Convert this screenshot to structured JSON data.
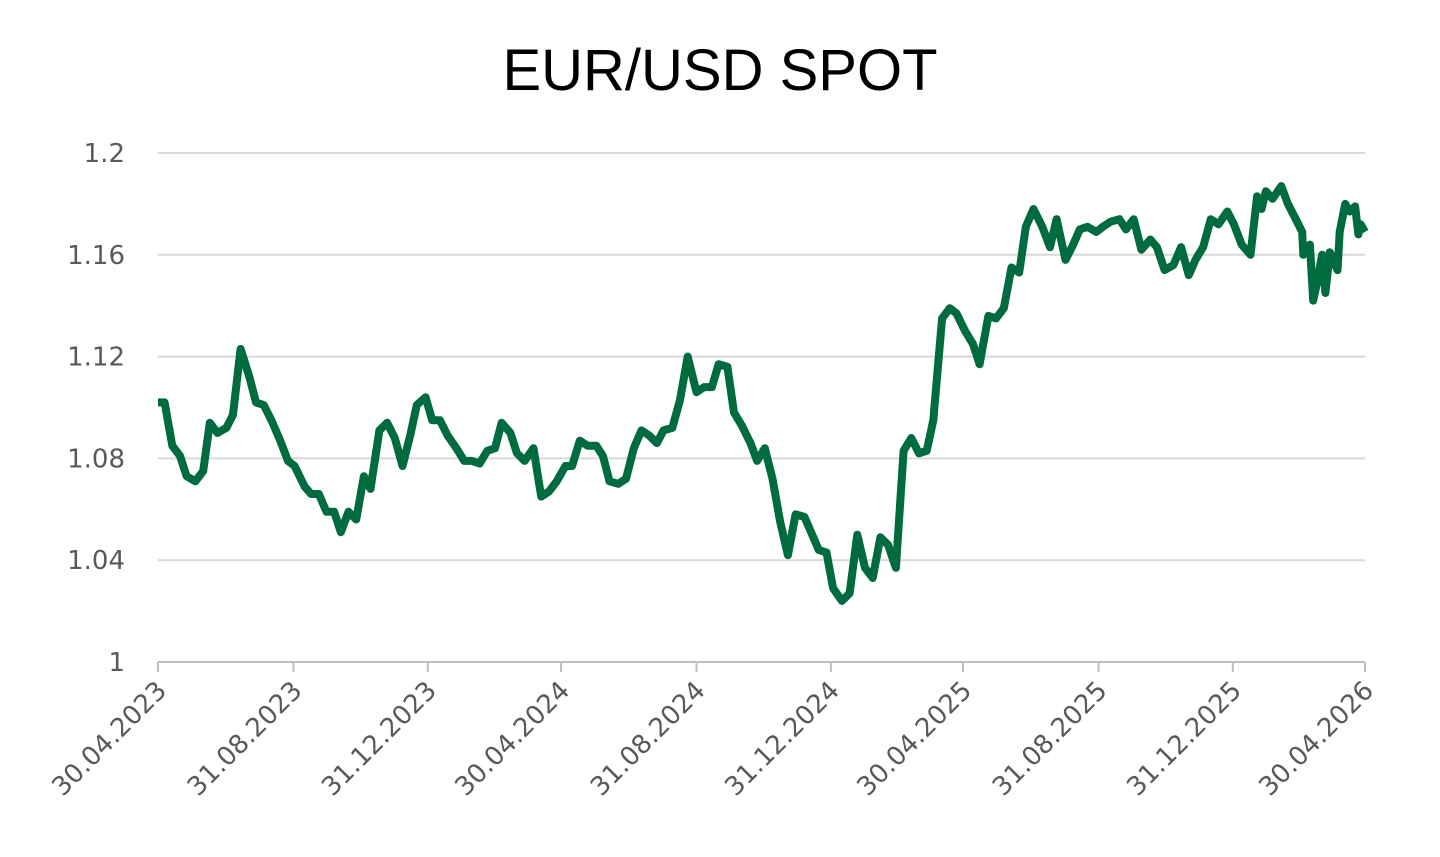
{
  "chart_data": {
    "type": "line",
    "title": "EUR/USD SPOT",
    "x": [
      "30.04.2023",
      "06.05.2023",
      "13.05.2023",
      "20.05.2023",
      "26.05.2023",
      "03.06.2023",
      "10.06.2023",
      "16.06.2023",
      "23.06.2023",
      "01.07.2023",
      "07.07.2023",
      "14.07.2023",
      "22.07.2023",
      "28.07.2023",
      "04.08.2023",
      "11.08.2023",
      "19.08.2023",
      "26.08.2023",
      "01.09.2023",
      "10.09.2023",
      "16.09.2023",
      "23.09.2023",
      "30.09.2023",
      "07.10.2023",
      "13.10.2023",
      "20.10.2023",
      "27.10.2023",
      "03.11.2023",
      "09.11.2023",
      "17.11.2023",
      "24.11.2023",
      "01.12.2023",
      "08.12.2023",
      "15.12.2023",
      "21.12.2023",
      "29.12.2023",
      "04.01.2024",
      "11.01.2024",
      "18.01.2024",
      "26.01.2024",
      "02.02.2024",
      "09.02.2024",
      "16.02.2024",
      "23.02.2024",
      "01.03.2024",
      "07.03.2024",
      "15.03.2024",
      "21.03.2024",
      "28.03.2024",
      "05.04.2024",
      "12.04.2024",
      "19.04.2024",
      "26.04.2024",
      "04.05.2024",
      "10.05.2024",
      "17.05.2024",
      "24.05.2024",
      "01.06.2024",
      "07.06.2024",
      "13.06.2024",
      "21.06.2024",
      "28.06.2024",
      "05.07.2024",
      "12.07.2024",
      "19.07.2024",
      "26.07.2024",
      "01.08.2024",
      "09.08.2024",
      "16.08.2024",
      "23.08.2024",
      "31.08.2024",
      "07.09.2024",
      "14.09.2024",
      "20.09.2024",
      "28.09.2024",
      "04.10.2024",
      "11.10.2024",
      "19.10.2024",
      "25.10.2024",
      "01.11.2024",
      "08.11.2024",
      "15.11.2024",
      "22.11.2024",
      "29.11.2024",
      "07.12.2024",
      "13.12.2024",
      "20.12.2024",
      "27.12.2024",
      "02.01.2025",
      "10.01.2025",
      "17.01.2025",
      "24.01.2025",
      "31.01.2025",
      "07.02.2025",
      "14.02.2025",
      "21.02.2025",
      "28.02.2025",
      "07.03.2025",
      "14.03.2025",
      "21.03.2025",
      "28.03.2025",
      "03.04.2025",
      "11.04.2025",
      "18.04.2025",
      "24.04.2025",
      "02.05.2025",
      "09.05.2025",
      "15.05.2025",
      "23.05.2025",
      "30.05.2025",
      "06.06.2025",
      "13.06.2025",
      "20.06.2025",
      "26.06.2025",
      "03.07.2025",
      "11.07.2025",
      "18.07.2025",
      "24.07.2025",
      "01.08.2025",
      "08.08.2025",
      "14.08.2025",
      "21.08.2025",
      "29.08.2025",
      "04.09.2025",
      "11.09.2025",
      "19.09.2025",
      "25.09.2025",
      "02.10.2025",
      "09.10.2025",
      "17.10.2025",
      "23.10.2025",
      "30.10.2025",
      "07.11.2025",
      "14.11.2025",
      "21.11.2025",
      "27.11.2025",
      "04.12.2025",
      "11.12.2025",
      "18.12.2025",
      "26.12.2025",
      "01.01.2026",
      "08.01.2026",
      "16.01.2026",
      "22.01.2026",
      "26.01.2026",
      "30.01.2026",
      "05.02.2026",
      "13.02.2026",
      "19.02.2026",
      "25.02.2026",
      "04.03.2026",
      "05.03.2026",
      "11.03.2026",
      "14.03.2026",
      "17.03.2026",
      "22.03.2026",
      "25.03.2026",
      "29.03.2026",
      "02.04.2026",
      "05.04.2026",
      "07.04.2026",
      "12.04.2026",
      "16.04.2026",
      "21.04.2026",
      "24.04.2026",
      "26.04.2026",
      "30.04.2026"
    ],
    "series": [
      {
        "color": "#006b3f",
        "values": [
          1.102,
          1.102,
          1.085,
          1.081,
          1.073,
          1.071,
          1.075,
          1.094,
          1.09,
          1.092,
          1.097,
          1.123,
          1.112,
          1.102,
          1.101,
          1.095,
          1.087,
          1.079,
          1.077,
          1.069,
          1.066,
          1.066,
          1.059,
          1.059,
          1.051,
          1.059,
          1.056,
          1.073,
          1.068,
          1.091,
          1.094,
          1.088,
          1.077,
          1.089,
          1.101,
          1.104,
          1.095,
          1.095,
          1.089,
          1.084,
          1.079,
          1.079,
          1.078,
          1.083,
          1.084,
          1.094,
          1.09,
          1.082,
          1.079,
          1.084,
          1.065,
          1.067,
          1.071,
          1.077,
          1.077,
          1.087,
          1.085,
          1.085,
          1.081,
          1.071,
          1.07,
          1.072,
          1.084,
          1.091,
          1.089,
          1.086,
          1.091,
          1.092,
          1.103,
          1.12,
          1.106,
          1.108,
          1.108,
          1.117,
          1.116,
          1.098,
          1.093,
          1.086,
          1.079,
          1.084,
          1.072,
          1.055,
          1.042,
          1.058,
          1.057,
          1.051,
          1.044,
          1.043,
          1.029,
          1.024,
          1.027,
          1.05,
          1.037,
          1.033,
          1.049,
          1.046,
          1.037,
          1.083,
          1.088,
          1.082,
          1.083,
          1.095,
          1.135,
          1.139,
          1.137,
          1.13,
          1.125,
          1.117,
          1.136,
          1.135,
          1.139,
          1.155,
          1.153,
          1.171,
          1.178,
          1.171,
          1.163,
          1.174,
          1.158,
          1.164,
          1.17,
          1.171,
          1.169,
          1.171,
          1.173,
          1.174,
          1.17,
          1.174,
          1.162,
          1.166,
          1.163,
          1.154,
          1.156,
          1.163,
          1.152,
          1.158,
          1.163,
          1.174,
          1.172,
          1.177,
          1.172,
          1.164,
          1.16,
          1.183,
          1.178,
          1.185,
          1.182,
          1.187,
          1.18,
          1.175,
          1.169,
          1.16,
          1.164,
          1.142,
          1.148,
          1.16,
          1.145,
          1.161,
          1.157,
          1.154,
          1.169,
          1.18,
          1.177,
          1.179,
          1.168,
          1.172,
          1.169
        ]
      }
    ],
    "xlim": [
      "30.04.2023",
      "30.04.2026"
    ],
    "xticks": [
      "30.04.2023",
      "31.08.2023",
      "31.12.2023",
      "30.04.2024",
      "31.08.2024",
      "31.12.2024",
      "30.04.2025",
      "31.08.2025",
      "31.12.2025",
      "30.04.2026"
    ],
    "ylim": [
      1,
      1.2
    ],
    "yticks": [
      1,
      1.04,
      1.08,
      1.12,
      1.16,
      1.2
    ],
    "grid": true
  }
}
